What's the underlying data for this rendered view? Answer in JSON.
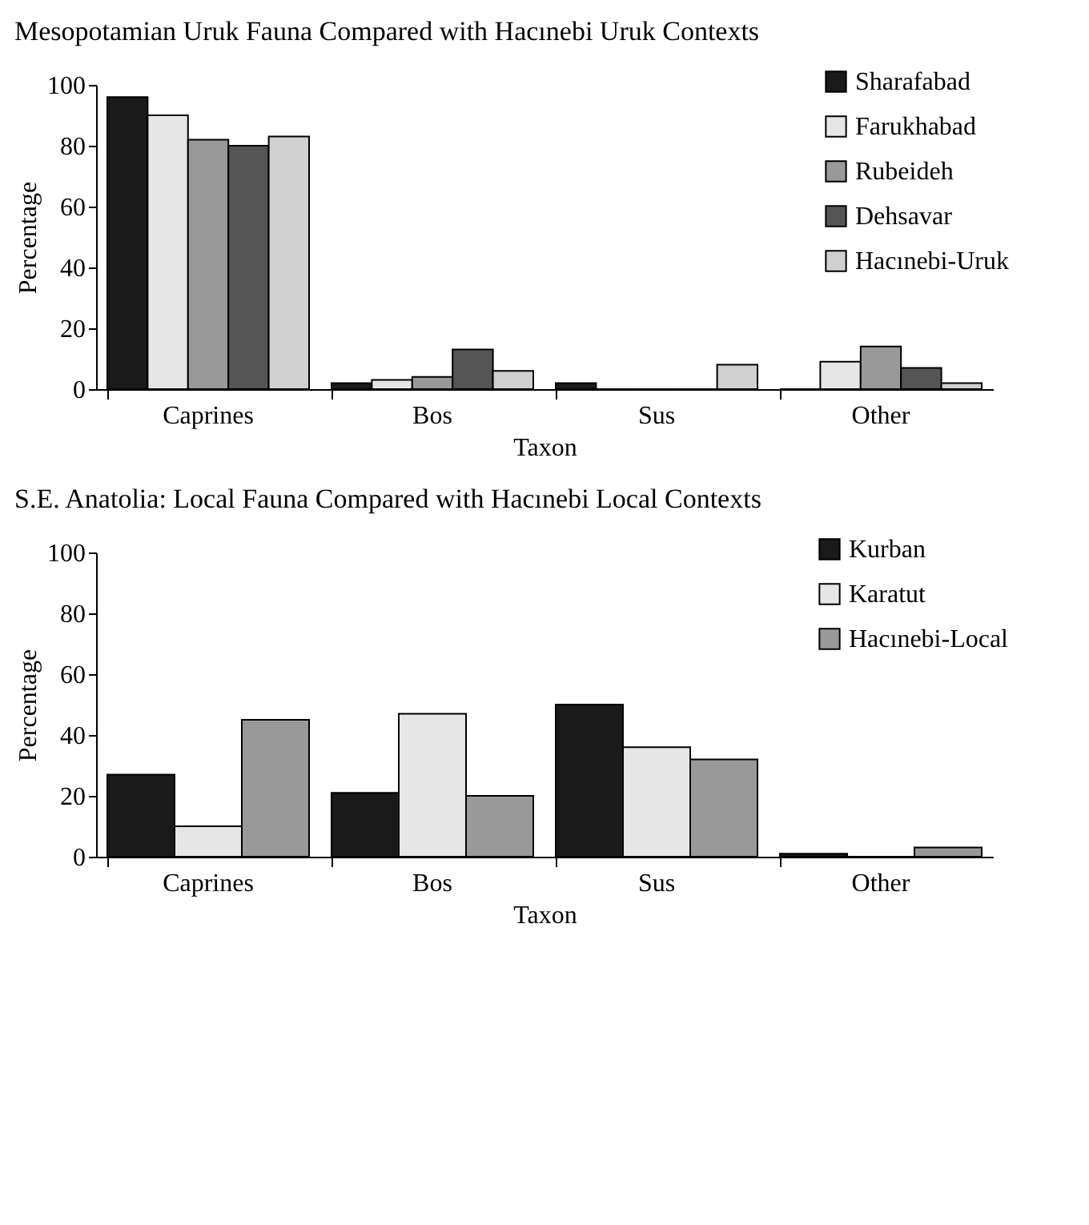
{
  "chart_data": [
    {
      "type": "bar",
      "title": "Mesopotamian Uruk Fauna Compared with Hacınebi Uruk Contexts",
      "xlabel": "Taxon",
      "ylabel": "Percentage",
      "categories": [
        "Caprines",
        "Bos",
        "Sus",
        "Other"
      ],
      "ylim": [
        0,
        100
      ],
      "yticks": [
        0,
        20,
        40,
        60,
        80,
        100
      ],
      "grid": false,
      "legend": "top right",
      "series": [
        {
          "name": "Sharafabad",
          "color": "#1a1a1a",
          "values": [
            96,
            2,
            2,
            0
          ]
        },
        {
          "name": "Farukhabad",
          "color": "#e6e6e6",
          "values": [
            90,
            3,
            0,
            9
          ]
        },
        {
          "name": "Rubeideh",
          "color": "#999999",
          "values": [
            82,
            4,
            0,
            14
          ]
        },
        {
          "name": "Dehsavar",
          "color": "#555555",
          "values": [
            80,
            13,
            0,
            7
          ]
        },
        {
          "name": "Hacınebi-Uruk",
          "color": "#d0d0d0",
          "values": [
            83,
            6,
            8,
            2
          ]
        }
      ]
    },
    {
      "type": "bar",
      "title": "S.E. Anatolia: Local Fauna Compared with Hacınebi Local Contexts",
      "xlabel": "Taxon",
      "ylabel": "Percentage",
      "categories": [
        "Caprines",
        "Bos",
        "Sus",
        "Other"
      ],
      "ylim": [
        0,
        100
      ],
      "yticks": [
        0,
        20,
        40,
        60,
        80,
        100
      ],
      "grid": false,
      "legend": "top right",
      "series": [
        {
          "name": "Kurban",
          "color": "#1a1a1a",
          "values": [
            27,
            21,
            50,
            1
          ]
        },
        {
          "name": "Karatut",
          "color": "#e6e6e6",
          "values": [
            10,
            47,
            36,
            0
          ]
        },
        {
          "name": "Hacınebi-Local",
          "color": "#999999",
          "values": [
            45,
            20,
            32,
            3
          ]
        }
      ]
    }
  ]
}
